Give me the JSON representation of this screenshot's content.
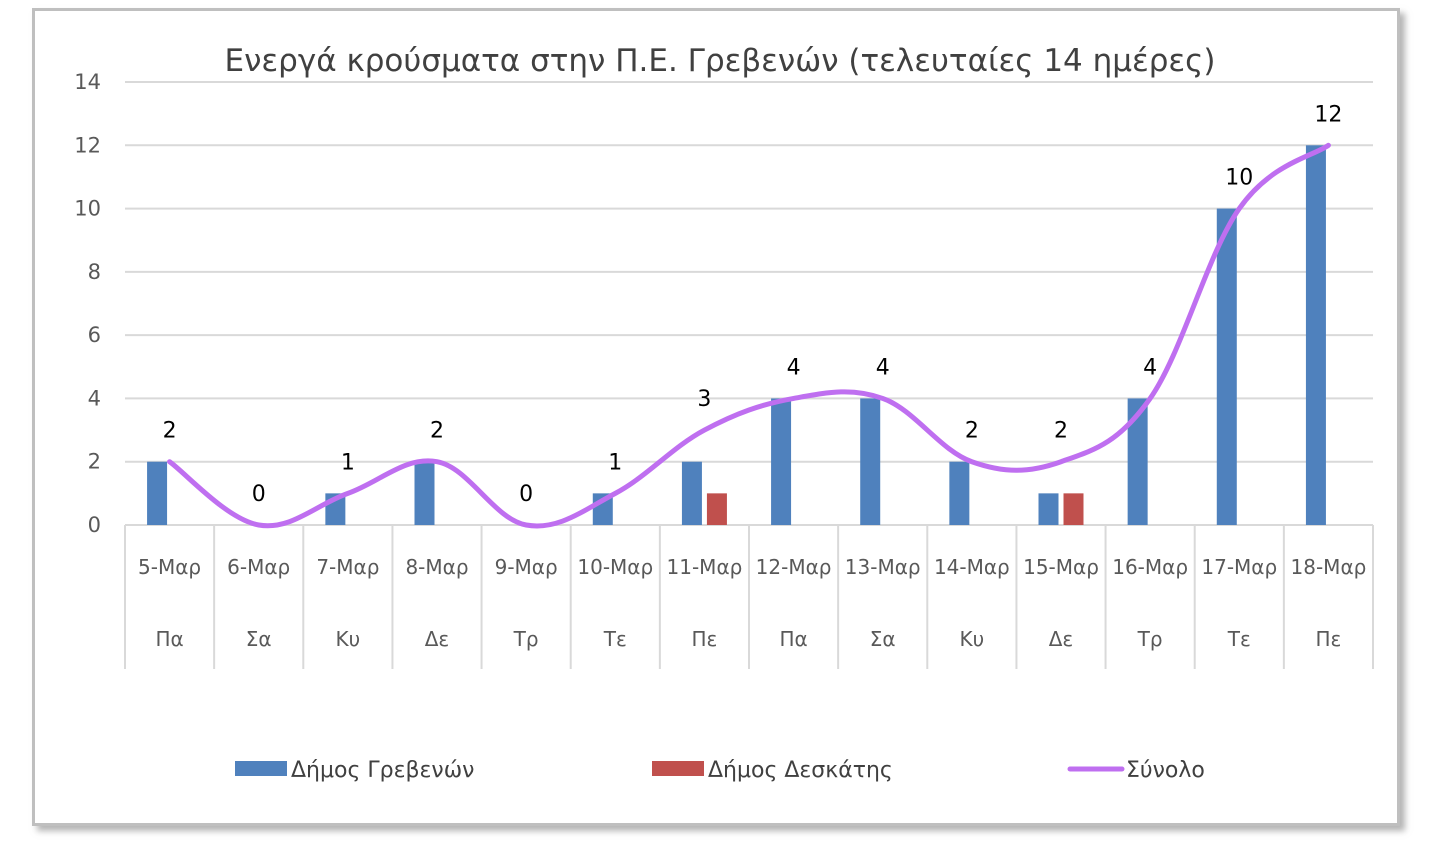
{
  "chart_data": {
    "type": "bar",
    "title": "Ενεργά κρούσματα στην Π.Ε. Γρεβενών (τελευταίες 14 ημέρες)",
    "xlabel": "",
    "ylabel": "",
    "ylim": [
      0,
      14
    ],
    "yticks": [
      0,
      2,
      4,
      6,
      8,
      10,
      12,
      14
    ],
    "grid": true,
    "legend_position": "bottom",
    "categories": [
      "5-Μαρ",
      "6-Μαρ",
      "7-Μαρ",
      "8-Μαρ",
      "9-Μαρ",
      "10-Μαρ",
      "11-Μαρ",
      "12-Μαρ",
      "13-Μαρ",
      "14-Μαρ",
      "15-Μαρ",
      "16-Μαρ",
      "17-Μαρ",
      "18-Μαρ"
    ],
    "weekdays": [
      "Πα",
      "Σα",
      "Κυ",
      "Δε",
      "Τρ",
      "Τε",
      "Πε",
      "Πα",
      "Σα",
      "Κυ",
      "Δε",
      "Τρ",
      "Τε",
      "Πε"
    ],
    "series": [
      {
        "name": "Δήμος Γρεβενών",
        "type": "bar",
        "color": "#4f81bd",
        "values": [
          2,
          0,
          1,
          2,
          0,
          1,
          2,
          4,
          4,
          2,
          1,
          4,
          10,
          12
        ]
      },
      {
        "name": "Δήμος Δεσκάτης",
        "type": "bar",
        "color": "#c0504d",
        "values": [
          0,
          0,
          0,
          0,
          0,
          0,
          1,
          0,
          0,
          0,
          1,
          0,
          0,
          0
        ]
      },
      {
        "name": "Σύνολο",
        "type": "line",
        "color": "#bf6ff0",
        "values": [
          2,
          0,
          1,
          2,
          0,
          1,
          3,
          4,
          4,
          2,
          2,
          4,
          10,
          12
        ]
      }
    ]
  }
}
